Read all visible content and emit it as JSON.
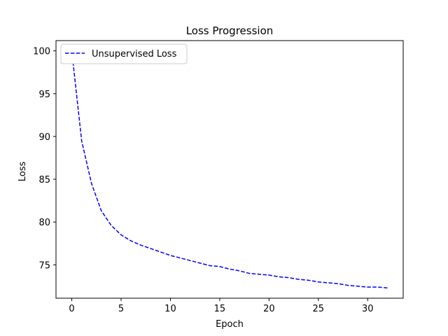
{
  "chart_data": {
    "type": "line",
    "title": "Loss Progression",
    "xlabel": "Epoch",
    "ylabel": "Loss",
    "xlim": [
      -1.6,
      33.6
    ],
    "ylim": [
      71.1,
      101.2
    ],
    "xticks": [
      0,
      5,
      10,
      15,
      20,
      25,
      30
    ],
    "yticks": [
      75,
      80,
      85,
      90,
      95,
      100
    ],
    "grid": false,
    "legend_position": "top-left",
    "series": [
      {
        "name": "Unsupervised Loss",
        "color": "#0000ff",
        "line_style": "dashed",
        "x": [
          0,
          1,
          2,
          3,
          4,
          5,
          6,
          7,
          8,
          9,
          10,
          11,
          12,
          13,
          14,
          15,
          16,
          17,
          18,
          19,
          20,
          21,
          22,
          23,
          24,
          25,
          26,
          27,
          28,
          29,
          30,
          31,
          32
        ],
        "y": [
          100.0,
          89.5,
          84.5,
          81.3,
          79.6,
          78.5,
          77.8,
          77.3,
          76.9,
          76.5,
          76.1,
          75.8,
          75.5,
          75.2,
          74.9,
          74.8,
          74.5,
          74.3,
          74.0,
          73.9,
          73.8,
          73.6,
          73.5,
          73.3,
          73.2,
          73.0,
          72.9,
          72.8,
          72.6,
          72.5,
          72.4,
          72.4,
          72.3
        ]
      }
    ]
  }
}
